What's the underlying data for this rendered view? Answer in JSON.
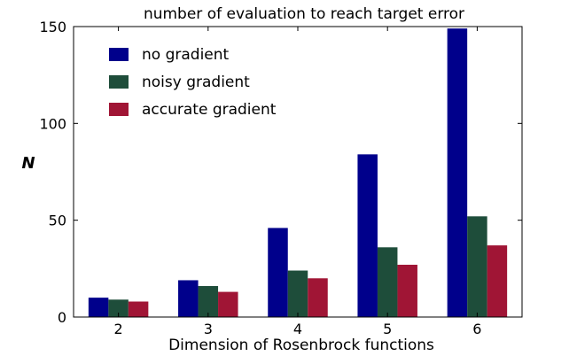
{
  "chart_data": {
    "type": "bar",
    "title": "number of evaluation to reach target error",
    "xlabel": "Dimension of Rosenbrock functions",
    "ylabel": "N",
    "categories": [
      "2",
      "3",
      "4",
      "5",
      "6"
    ],
    "series": [
      {
        "name": "no gradient",
        "color": "#00008b",
        "values": [
          10,
          19,
          46,
          84,
          149
        ]
      },
      {
        "name": "noisy gradient",
        "color": "#1e4d3a",
        "values": [
          9,
          16,
          24,
          36,
          52
        ]
      },
      {
        "name": "accurate gradient",
        "color": "#a01535",
        "values": [
          8,
          13,
          20,
          27,
          37
        ]
      }
    ],
    "ylim": [
      0,
      150
    ],
    "yticks": [
      0,
      50,
      100,
      150
    ],
    "grid": false,
    "legend_position": "top-left"
  }
}
